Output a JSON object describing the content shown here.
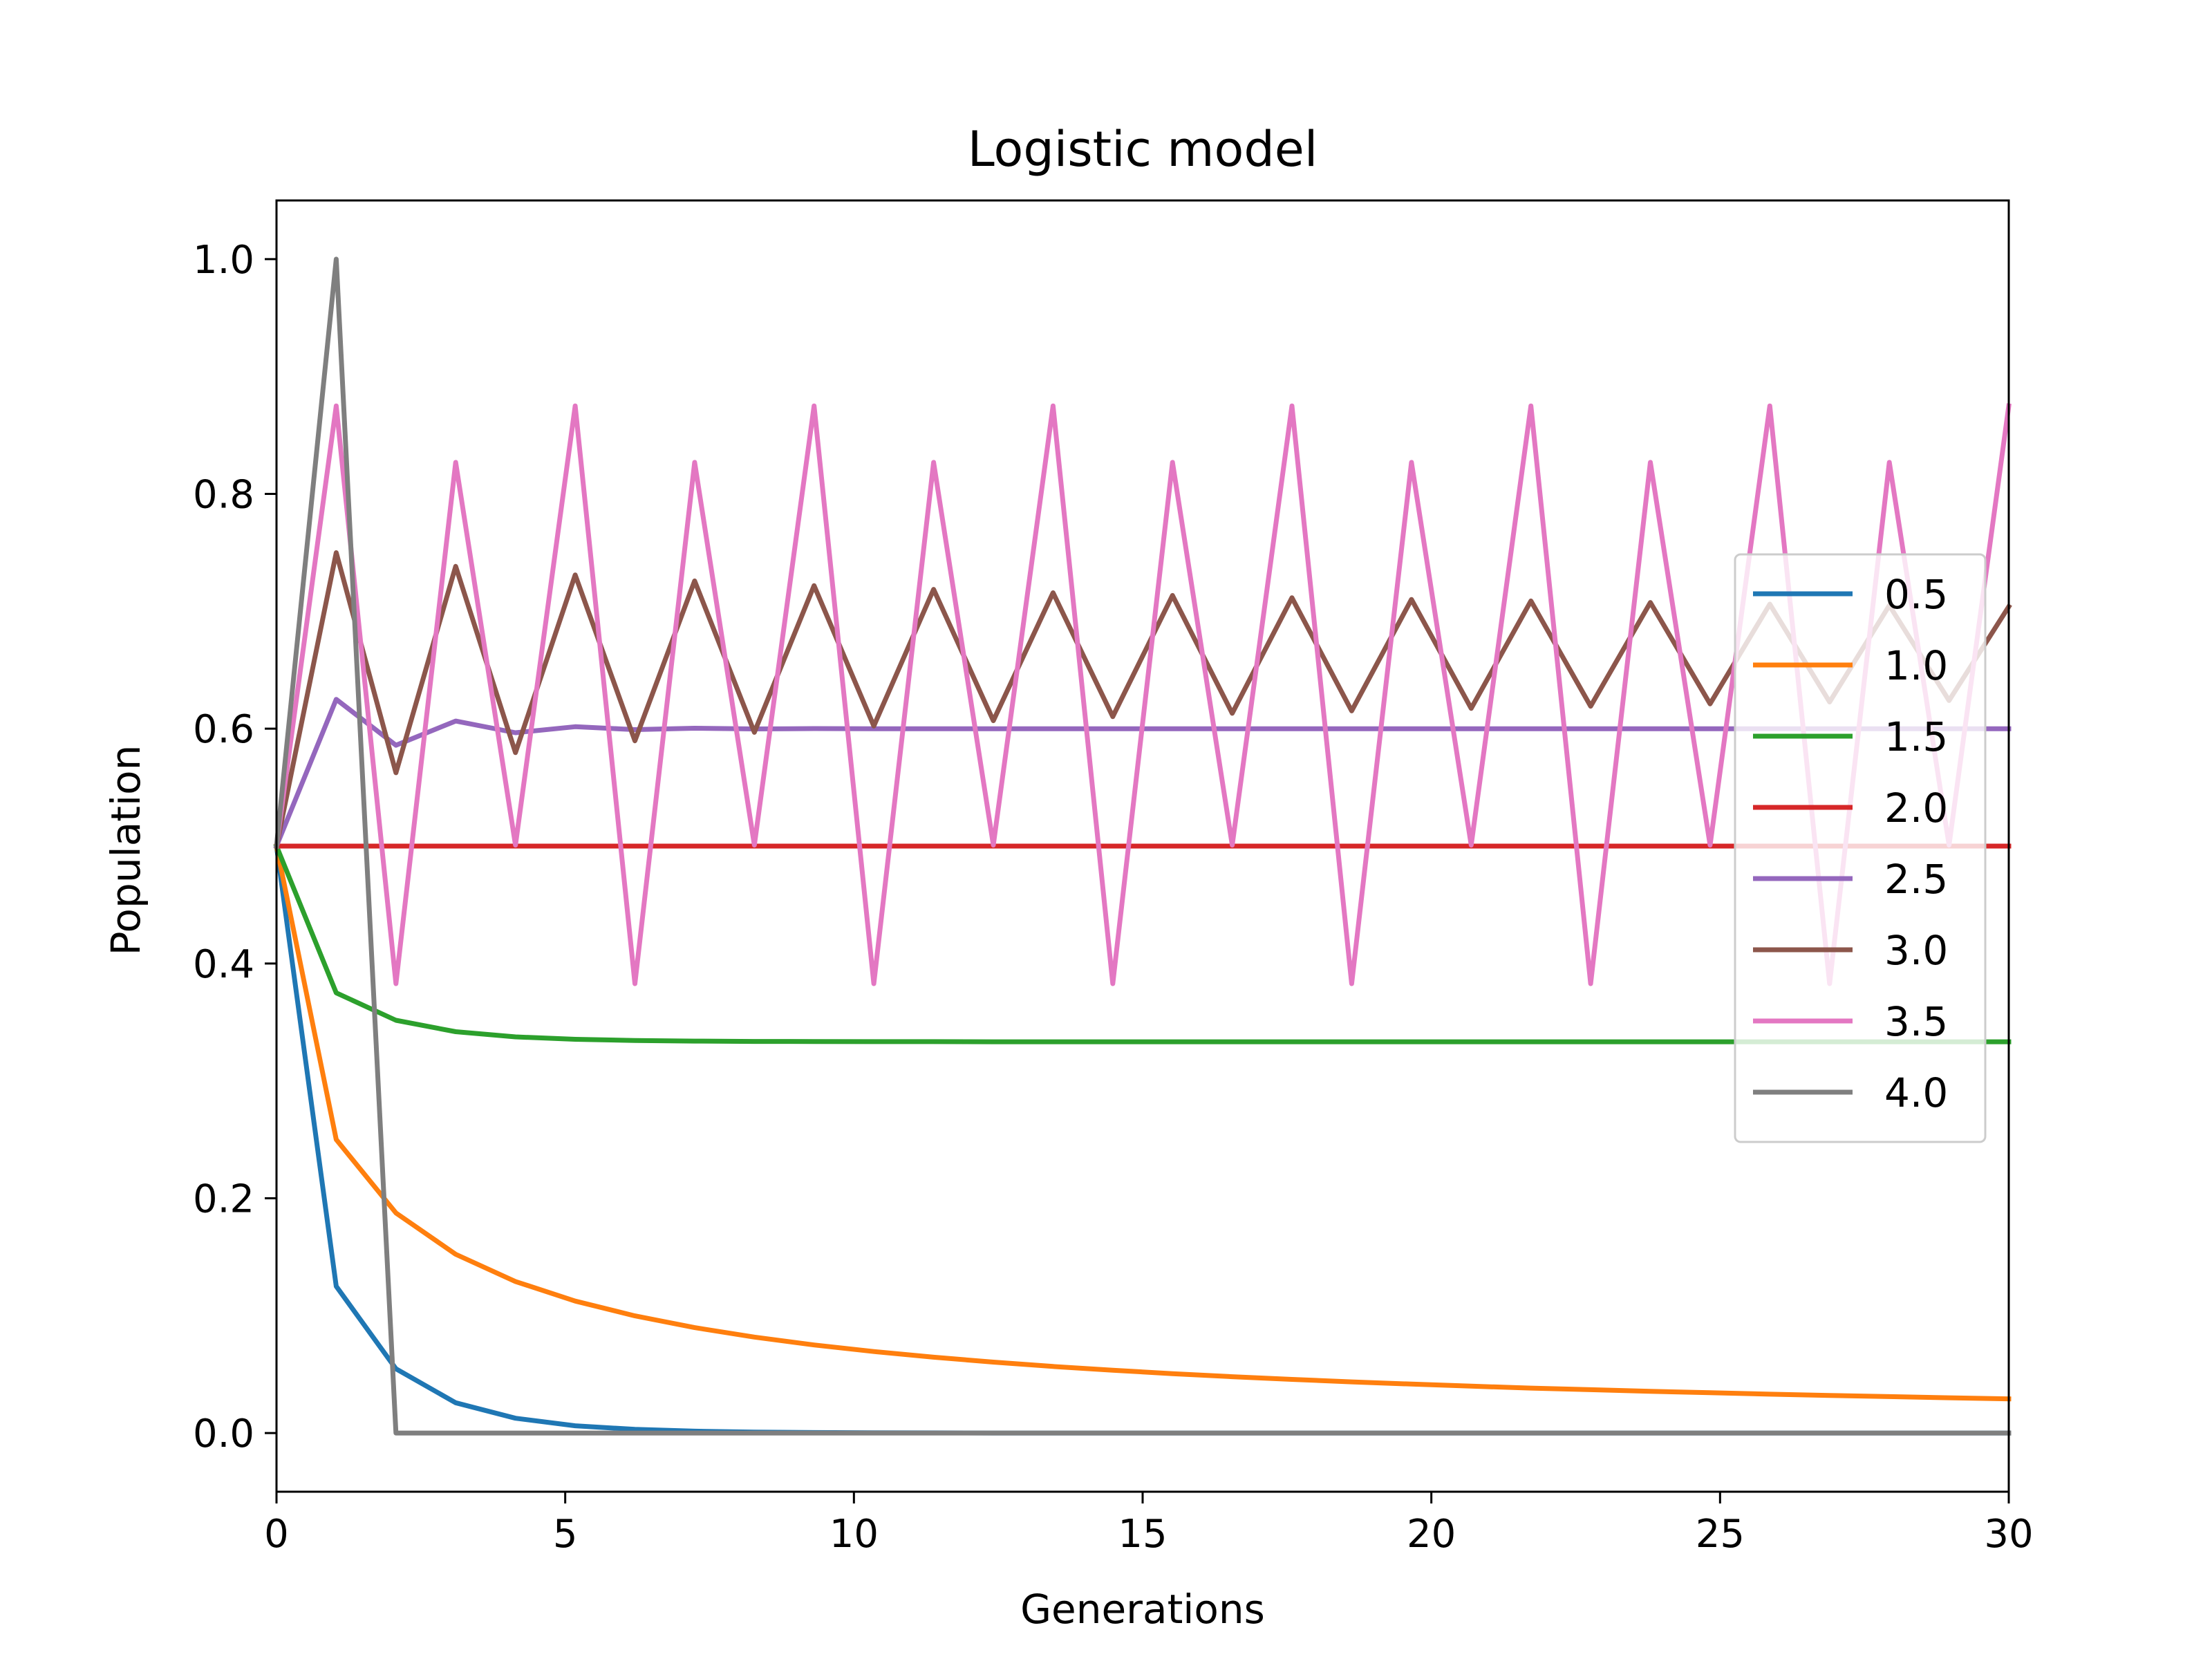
{
  "chart_data": {
    "type": "line",
    "title": "Logistic model",
    "xlabel": "Generations",
    "ylabel": "Population",
    "xlim": [
      0,
      30
    ],
    "ylim": [
      -0.05,
      1.05
    ],
    "xticks": [
      0,
      5,
      10,
      15,
      20,
      25,
      30
    ],
    "xtick_labels": [
      "0",
      "5",
      "10",
      "15",
      "20",
      "25",
      "30"
    ],
    "yticks": [
      0.0,
      0.2,
      0.4,
      0.6,
      0.8,
      1.0
    ],
    "ytick_labels": [
      "0.0",
      "0.2",
      "0.4",
      "0.6",
      "0.8",
      "1.0"
    ],
    "grid": false,
    "legend_position": "center-right",
    "x": [
      0,
      1.0345,
      2.069,
      3.1034,
      4.1379,
      5.1724,
      6.2069,
      7.2414,
      8.2759,
      9.3103,
      10.3448,
      11.3793,
      12.4138,
      13.4483,
      14.4828,
      15.5172,
      16.5517,
      17.5862,
      18.6207,
      19.6552,
      20.6897,
      21.7241,
      22.7586,
      23.7931,
      24.8276,
      25.8621,
      26.8966,
      27.931,
      28.9655,
      30
    ],
    "series": [
      {
        "name": "0.5",
        "color": "#1f77b4",
        "values": [
          0.5,
          0.125,
          0.0547,
          0.0258,
          0.0126,
          0.0062,
          0.0031,
          0.0016,
          0.0008,
          0.0004,
          0.0002,
          0.0001,
          0.0,
          0.0,
          0.0,
          0.0,
          0.0,
          0.0,
          0.0,
          0.0,
          0.0,
          0.0,
          0.0,
          0.0,
          0.0,
          0.0,
          0.0,
          0.0,
          0.0,
          0.0
        ]
      },
      {
        "name": "1.0",
        "color": "#ff7f0e",
        "values": [
          0.5,
          0.25,
          0.1875,
          0.1523,
          0.1291,
          0.1124,
          0.0998,
          0.0898,
          0.0817,
          0.075,
          0.0694,
          0.0646,
          0.0604,
          0.0567,
          0.0535,
          0.0506,
          0.048,
          0.0457,
          0.0436,
          0.0417,
          0.0399,
          0.0383,
          0.0369,
          0.0355,
          0.0343,
          0.0331,
          0.032,
          0.031,
          0.03,
          0.0291
        ]
      },
      {
        "name": "1.5",
        "color": "#2ca02c",
        "values": [
          0.5,
          0.375,
          0.3516,
          0.3419,
          0.3375,
          0.3354,
          0.3344,
          0.3339,
          0.3336,
          0.3335,
          0.3334,
          0.3334,
          0.3333,
          0.3333,
          0.3333,
          0.3333,
          0.3333,
          0.3333,
          0.3333,
          0.3333,
          0.3333,
          0.3333,
          0.3333,
          0.3333,
          0.3333,
          0.3333,
          0.3333,
          0.3333,
          0.3333,
          0.3333
        ]
      },
      {
        "name": "2.0",
        "color": "#d62728",
        "values": [
          0.5,
          0.5,
          0.5,
          0.5,
          0.5,
          0.5,
          0.5,
          0.5,
          0.5,
          0.5,
          0.5,
          0.5,
          0.5,
          0.5,
          0.5,
          0.5,
          0.5,
          0.5,
          0.5,
          0.5,
          0.5,
          0.5,
          0.5,
          0.5,
          0.5,
          0.5,
          0.5,
          0.5,
          0.5,
          0.5
        ]
      },
      {
        "name": "2.5",
        "color": "#9467bd",
        "values": [
          0.5,
          0.625,
          0.5859,
          0.6065,
          0.5966,
          0.6017,
          0.5992,
          0.6004,
          0.5998,
          0.6001,
          0.6,
          0.6,
          0.6,
          0.6,
          0.6,
          0.6,
          0.6,
          0.6,
          0.6,
          0.6,
          0.6,
          0.6,
          0.6,
          0.6,
          0.6,
          0.6,
          0.6,
          0.6,
          0.6,
          0.6
        ]
      },
      {
        "name": "3.0",
        "color": "#8c564b",
        "values": [
          0.5,
          0.75,
          0.5625,
          0.7383,
          0.5796,
          0.731,
          0.5897,
          0.7259,
          0.5969,
          0.7219,
          0.6023,
          0.7187,
          0.6068,
          0.7158,
          0.6103,
          0.7135,
          0.6131,
          0.7116,
          0.6152,
          0.7101,
          0.6173,
          0.7088,
          0.6192,
          0.7075,
          0.6212,
          0.7061,
          0.6228,
          0.705,
          0.624,
          0.704
        ]
      },
      {
        "name": "3.5",
        "color": "#e377c2",
        "values": [
          0.5,
          0.875,
          0.3828,
          0.8269,
          0.5009,
          0.875,
          0.3828,
          0.8269,
          0.5009,
          0.875,
          0.3828,
          0.8269,
          0.5009,
          0.875,
          0.3828,
          0.8269,
          0.5009,
          0.875,
          0.3828,
          0.8269,
          0.5009,
          0.875,
          0.3828,
          0.8269,
          0.5009,
          0.875,
          0.3828,
          0.8269,
          0.5009,
          0.875
        ]
      },
      {
        "name": "4.0",
        "color": "#7f7f7f",
        "values": [
          0.5,
          1.0,
          0.0,
          0.0,
          0.0,
          0.0,
          0.0,
          0.0,
          0.0,
          0.0,
          0.0,
          0.0,
          0.0,
          0.0,
          0.0,
          0.0,
          0.0,
          0.0,
          0.0,
          0.0,
          0.0,
          0.0,
          0.0,
          0.0,
          0.0,
          0.0,
          0.0,
          0.0,
          0.0,
          0.0
        ]
      }
    ]
  }
}
